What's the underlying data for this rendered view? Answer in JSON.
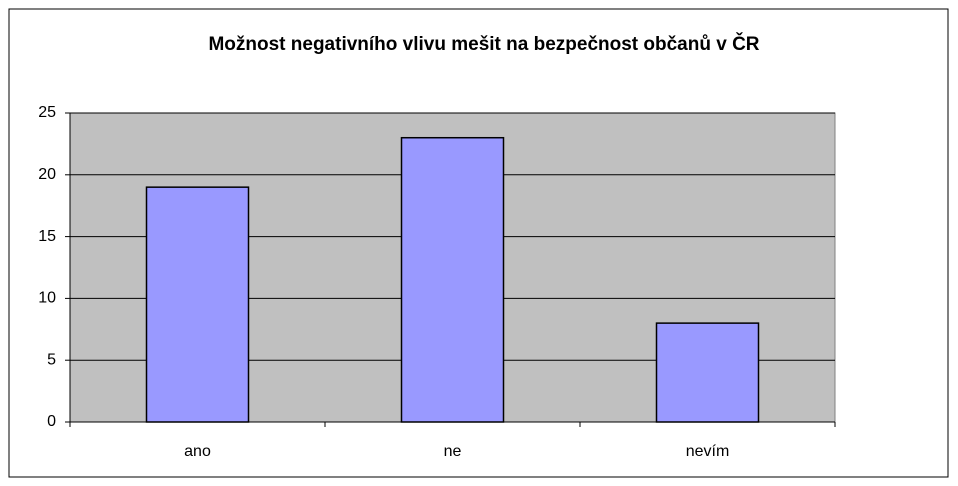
{
  "chart_data": {
    "type": "bar",
    "title": "Možnost negativního vlivu mešit na bezpečnost občanů v ČR",
    "categories": [
      "ano",
      "ne",
      "nevím"
    ],
    "values": [
      19,
      23,
      8
    ],
    "color": "#9999ff",
    "ylim": [
      0,
      25
    ],
    "yticks": [
      0,
      5,
      10,
      15,
      20,
      25
    ],
    "grid": true,
    "plot_background": "#c0c0c0"
  }
}
